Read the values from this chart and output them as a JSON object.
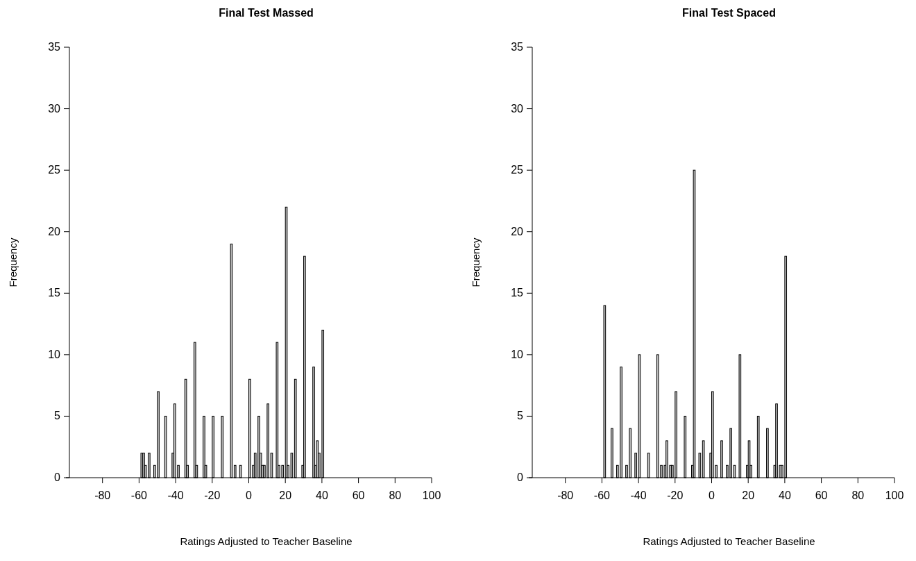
{
  "chart_data": [
    {
      "type": "histogram",
      "title": "Final Test Massed",
      "xlabel": "Ratings Adjusted to Teacher Baseline",
      "ylabel": "Frequency",
      "color": "#bebebe",
      "bins": [
        -59,
        -58,
        -57,
        -56,
        -55,
        -54,
        -53,
        -52,
        -51,
        -50,
        -49,
        -48,
        -47,
        -46,
        -45,
        -44,
        -43,
        -42,
        -41,
        -40,
        -39,
        -38,
        -37,
        -36,
        -35,
        -34,
        -33,
        -32,
        -31,
        -30,
        -29,
        -28,
        -27,
        -26,
        -25,
        -24,
        -23,
        -22,
        -21,
        -20,
        -19,
        -18,
        -17,
        -16,
        -15,
        -14,
        -13,
        -12,
        -11,
        -10,
        -9,
        -8,
        -7,
        -6,
        -5,
        -4,
        -3,
        -2,
        -1,
        0,
        1,
        2,
        3,
        4,
        5,
        6,
        7,
        8,
        9,
        10,
        11,
        12,
        13,
        14,
        15,
        16,
        17,
        18,
        19,
        20,
        21,
        22,
        23,
        24,
        25,
        26,
        27,
        28,
        29,
        30,
        31,
        32,
        33,
        34,
        35,
        36,
        37,
        38,
        39,
        40,
        41
      ],
      "values": [
        2,
        2,
        1,
        0,
        2,
        0,
        0,
        1,
        0,
        7,
        0,
        0,
        0,
        5,
        0,
        0,
        0,
        2,
        6,
        0,
        1,
        0,
        0,
        0,
        8,
        1,
        0,
        0,
        0,
        11,
        1,
        0,
        0,
        0,
        5,
        1,
        0,
        0,
        0,
        5,
        0,
        0,
        0,
        0,
        5,
        0,
        0,
        0,
        0,
        19,
        0,
        1,
        0,
        0,
        1,
        0,
        0,
        0,
        0,
        8,
        0,
        1,
        2,
        0,
        5,
        2,
        1,
        1,
        0,
        6,
        0,
        2,
        0,
        0,
        11,
        1,
        0,
        1,
        0,
        22,
        1,
        0,
        2,
        0,
        8,
        0,
        0,
        0,
        1,
        18,
        0,
        0,
        0,
        0,
        9,
        1,
        3,
        2,
        0,
        12
      ],
      "xlim": [
        -100,
        100
      ],
      "xticks": [
        -80,
        -60,
        -40,
        -20,
        0,
        20,
        40,
        60,
        80,
        100
      ],
      "ylim": [
        0,
        35
      ],
      "yticks": [
        0,
        5,
        10,
        15,
        20,
        25,
        30,
        35
      ]
    },
    {
      "type": "histogram",
      "title": "Final Test Spaced",
      "xlabel": "Ratings Adjusted to Teacher Baseline",
      "ylabel": "Frequency",
      "color": "#bebebe",
      "bins": [
        -59,
        -58,
        -57,
        -56,
        -55,
        -54,
        -53,
        -52,
        -51,
        -50,
        -49,
        -48,
        -47,
        -46,
        -45,
        -44,
        -43,
        -42,
        -41,
        -40,
        -39,
        -38,
        -37,
        -36,
        -35,
        -34,
        -33,
        -32,
        -31,
        -30,
        -29,
        -28,
        -27,
        -26,
        -25,
        -24,
        -23,
        -22,
        -21,
        -20,
        -19,
        -18,
        -17,
        -16,
        -15,
        -14,
        -13,
        -12,
        -11,
        -10,
        -9,
        -8,
        -7,
        -6,
        -5,
        -4,
        -3,
        -2,
        -1,
        0,
        1,
        2,
        3,
        4,
        5,
        6,
        7,
        8,
        9,
        10,
        11,
        12,
        13,
        14,
        15,
        16,
        17,
        18,
        19,
        20,
        21,
        22,
        23,
        24,
        25,
        26,
        27,
        28,
        29,
        30,
        31,
        32,
        33,
        34,
        35,
        36,
        37,
        38,
        39,
        40,
        41
      ],
      "values": [
        14,
        0,
        0,
        0,
        4,
        0,
        0,
        1,
        0,
        9,
        0,
        0,
        1,
        0,
        4,
        0,
        0,
        2,
        0,
        10,
        0,
        0,
        0,
        0,
        2,
        0,
        0,
        0,
        0,
        10,
        0,
        1,
        0,
        1,
        3,
        0,
        1,
        1,
        0,
        7,
        0,
        0,
        0,
        0,
        5,
        0,
        0,
        0,
        1,
        25,
        0,
        0,
        2,
        0,
        3,
        0,
        0,
        0,
        2,
        7,
        0,
        1,
        0,
        0,
        3,
        0,
        0,
        1,
        0,
        4,
        0,
        1,
        0,
        0,
        10,
        0,
        0,
        0,
        1,
        3,
        1,
        0,
        0,
        0,
        5,
        0,
        0,
        0,
        0,
        4,
        0,
        0,
        0,
        1,
        6,
        0,
        1,
        1,
        0,
        18
      ],
      "xlim": [
        -100,
        100
      ],
      "xticks": [
        -80,
        -60,
        -40,
        -20,
        0,
        20,
        40,
        60,
        80,
        100
      ],
      "ylim": [
        0,
        35
      ],
      "yticks": [
        0,
        5,
        10,
        15,
        20,
        25,
        30,
        35
      ]
    }
  ]
}
